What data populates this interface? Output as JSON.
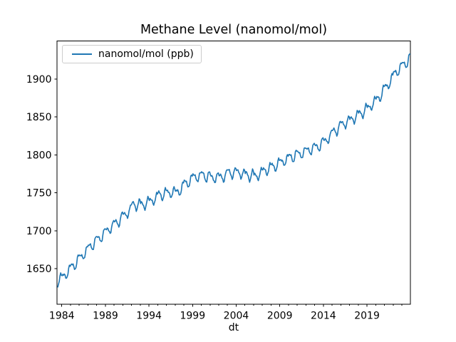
{
  "chart_data": {
    "type": "line",
    "title": "Methane Level (nanomol/mol)",
    "xlabel": "dt",
    "ylabel": "",
    "legend": {
      "entries": [
        "nanomol/mol (ppb)"
      ],
      "position": "upper left"
    },
    "line_color": "#1f77b4",
    "background_color": "#ffffff",
    "axis_color": "#000000",
    "xlim": [
      1983.45,
      2023.98
    ],
    "ylim": [
      1603,
      1950
    ],
    "x_ticks_major": [
      1984,
      1989,
      1994,
      1999,
      2004,
      2009,
      2014,
      2019
    ],
    "x_minor_tick_step_years": 1,
    "y_ticks": [
      1650,
      1700,
      1750,
      1800,
      1850,
      1900
    ],
    "grid": false,
    "series": [
      {
        "name": "nanomol/mol (ppb)",
        "cadence": "monthly",
        "start": "1983-07",
        "end": "2023-12",
        "annual_means": {
          "1983": 1634.0,
          "1984": 1644.5,
          "1985": 1657.3,
          "1986": 1670.1,
          "1987": 1682.7,
          "1988": 1693.2,
          "1989": 1704.1,
          "1990": 1714.0,
          "1991": 1724.7,
          "1992": 1735.4,
          "1993": 1736.4,
          "1994": 1742.0,
          "1995": 1748.9,
          "1996": 1751.3,
          "1997": 1754.5,
          "1998": 1765.5,
          "1999": 1772.3,
          "2000": 1773.2,
          "2001": 1771.1,
          "2002": 1772.7,
          "2003": 1777.3,
          "2004": 1777.0,
          "2005": 1774.2,
          "2006": 1774.7,
          "2007": 1781.4,
          "2008": 1786.9,
          "2009": 1793.2,
          "2010": 1798.9,
          "2011": 1803.1,
          "2012": 1808.1,
          "2013": 1813.3,
          "2014": 1822.5,
          "2015": 1834.2,
          "2016": 1843.1,
          "2017": 1849.6,
          "2018": 1857.3,
          "2019": 1866.6,
          "2020": 1878.9,
          "2021": 1895.3,
          "2022": 1911.8,
          "2023": 1923.0,
          "2024": 1935.0
        },
        "seasonal_cycle_ppb": [
          2.5,
          2.8,
          2.0,
          0.5,
          -2.5,
          -6.0,
          -8.5,
          -7.0,
          -2.5,
          2.8,
          5.5,
          4.0
        ],
        "first_value": 1625.9,
        "last_value": 1932.5
      }
    ]
  }
}
